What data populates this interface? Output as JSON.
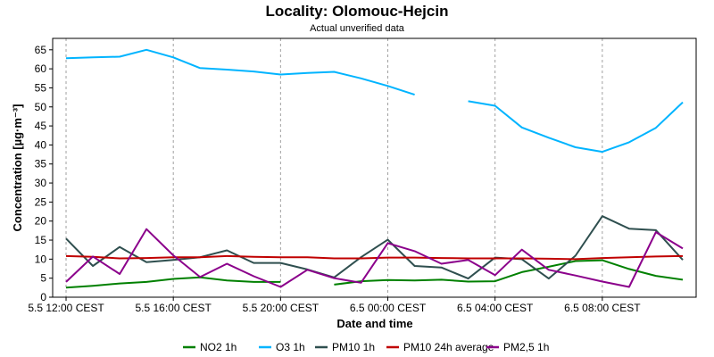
{
  "chart_data": {
    "type": "line",
    "title": "Locality: Olomouc-Hejcin",
    "subtitle": "Actual unverified data",
    "xlabel": "Date and time",
    "ylabel": "Concentration [µg·m⁻³]",
    "ylim": [
      0,
      68
    ],
    "yticks": [
      0,
      5,
      10,
      15,
      20,
      25,
      30,
      35,
      40,
      45,
      50,
      55,
      60,
      65
    ],
    "xlim": [
      -0.5,
      23.5
    ],
    "xtick_labels": [
      {
        "x": 0,
        "label": "5.5 12:00 CEST"
      },
      {
        "x": 4,
        "label": "5.5 16:00 CEST"
      },
      {
        "x": 8,
        "label": "5.5 20:00 CEST"
      },
      {
        "x": 12,
        "label": "6.5 00:00 CEST"
      },
      {
        "x": 16,
        "label": "6.5 04:00 CEST"
      },
      {
        "x": 20,
        "label": "6.5 08:00 CEST"
      }
    ],
    "grid": true,
    "legend_position": "bottom",
    "x": [
      0,
      1,
      2,
      3,
      4,
      5,
      6,
      7,
      8,
      9,
      10,
      11,
      12,
      13,
      14,
      15,
      16,
      17,
      18,
      19,
      20,
      21,
      22,
      23
    ],
    "series": [
      {
        "name": "NO2 1h",
        "color": "#008000",
        "values": [
          2.5,
          3.0,
          3.6,
          4.0,
          4.8,
          5.2,
          4.4,
          4.0,
          4.0,
          null,
          3.3,
          4.2,
          4.5,
          4.4,
          4.6,
          4.1,
          4.2,
          6.6,
          8.0,
          9.5,
          9.7,
          7.4,
          5.6,
          4.6
        ]
      },
      {
        "name": "O3 1h",
        "color": "#00b4ff",
        "values": [
          62.8,
          63.0,
          63.2,
          65.0,
          63.0,
          60.2,
          59.8,
          59.3,
          58.5,
          58.9,
          59.2,
          57.5,
          55.5,
          53.2,
          null,
          51.5,
          50.3,
          44.6,
          41.9,
          39.4,
          38.2,
          40.7,
          44.5,
          51.2
        ]
      },
      {
        "name": "PM10 1h",
        "color": "#2f4f4f",
        "values": [
          15.4,
          8.2,
          13.2,
          9.2,
          9.8,
          10.5,
          12.3,
          9.0,
          9.0,
          7.3,
          5.2,
          10.5,
          15.1,
          8.2,
          7.8,
          4.9,
          10.4,
          10.0,
          4.9,
          10.9,
          21.3,
          18.0,
          17.6,
          9.8
        ]
      },
      {
        "name": "PM10 24h average",
        "color": "#c00000",
        "values": [
          10.8,
          10.6,
          10.2,
          10.3,
          10.5,
          10.5,
          10.8,
          10.6,
          10.5,
          10.5,
          10.2,
          10.2,
          10.4,
          10.4,
          10.3,
          10.2,
          10.2,
          10.2,
          10.1,
          10.0,
          10.3,
          10.5,
          10.7,
          10.8
        ]
      },
      {
        "name": "PM2,5 1h",
        "color": "#8b008b",
        "values": [
          4.0,
          10.7,
          6.1,
          17.9,
          11.0,
          5.3,
          8.8,
          5.5,
          2.7,
          7.2,
          5.0,
          3.8,
          14.2,
          12.1,
          8.8,
          9.8,
          5.8,
          12.5,
          7.2,
          5.7,
          4.1,
          2.7,
          17.1,
          12.8
        ]
      }
    ]
  }
}
